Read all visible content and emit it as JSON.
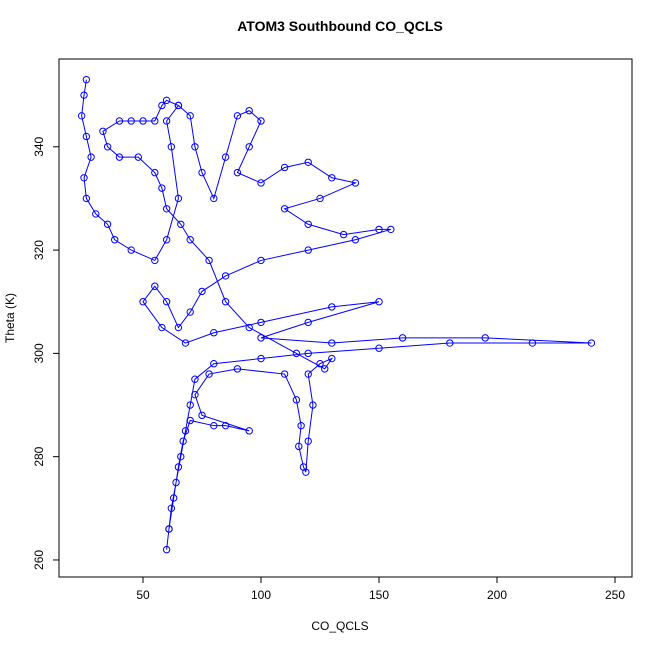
{
  "chart_data": {
    "type": "scatter",
    "title": "ATOM3 Southbound CO_QCLS",
    "x_label": "CO_QCLS",
    "y_label": "Theta (K)",
    "color": "#0000ff",
    "x": [
      26,
      25,
      24,
      26,
      28,
      25,
      26,
      30,
      35,
      38,
      45,
      55,
      60,
      65,
      62,
      60,
      65,
      70,
      72,
      75,
      80,
      85,
      90,
      95,
      100,
      95,
      90,
      100,
      110,
      120,
      130,
      140,
      125,
      110,
      120,
      135,
      150,
      155,
      140,
      120,
      100,
      85,
      75,
      70,
      65,
      60,
      55,
      50,
      58,
      68,
      80,
      100,
      130,
      150,
      120,
      100,
      130,
      160,
      195,
      240,
      215,
      180,
      150,
      120,
      100,
      80,
      72,
      70,
      68,
      66,
      64,
      62,
      61,
      60,
      61,
      63,
      65,
      67,
      70,
      80,
      85,
      95,
      75,
      72,
      78,
      90,
      110,
      115,
      117,
      116,
      118,
      119,
      120,
      122,
      120,
      125,
      130,
      127,
      115,
      95,
      85,
      78,
      70,
      66,
      60,
      58,
      55,
      48,
      40,
      35,
      33,
      40,
      45,
      50,
      55,
      58,
      60,
      65
    ],
    "values": [
      353,
      350,
      346,
      342,
      338,
      334,
      330,
      327,
      325,
      322,
      320,
      318,
      322,
      330,
      340,
      345,
      348,
      346,
      340,
      335,
      330,
      338,
      346,
      347,
      345,
      340,
      335,
      333,
      336,
      337,
      334,
      333,
      330,
      328,
      325,
      323,
      324,
      324,
      322,
      320,
      318,
      315,
      312,
      308,
      305,
      310,
      313,
      310,
      305,
      302,
      304,
      306,
      309,
      310,
      306,
      303,
      302,
      303,
      303,
      302,
      302,
      302,
      301,
      300,
      299,
      298,
      295,
      290,
      285,
      280,
      275,
      270,
      266,
      262,
      266,
      272,
      278,
      283,
      287,
      286,
      286,
      285,
      288,
      292,
      296,
      297,
      296,
      291,
      286,
      282,
      278,
      277,
      283,
      290,
      296,
      298,
      299,
      297,
      300,
      305,
      310,
      318,
      322,
      325,
      328,
      332,
      335,
      338,
      338,
      340,
      343,
      345,
      345,
      345,
      345,
      348,
      349,
      348
    ],
    "xlim": [
      14.4,
      257.2
    ],
    "ylim": [
      256.7,
      357.0
    ],
    "xticks": [
      50,
      100,
      150,
      200,
      250
    ],
    "yticks": [
      260,
      280,
      300,
      320,
      340
    ]
  }
}
